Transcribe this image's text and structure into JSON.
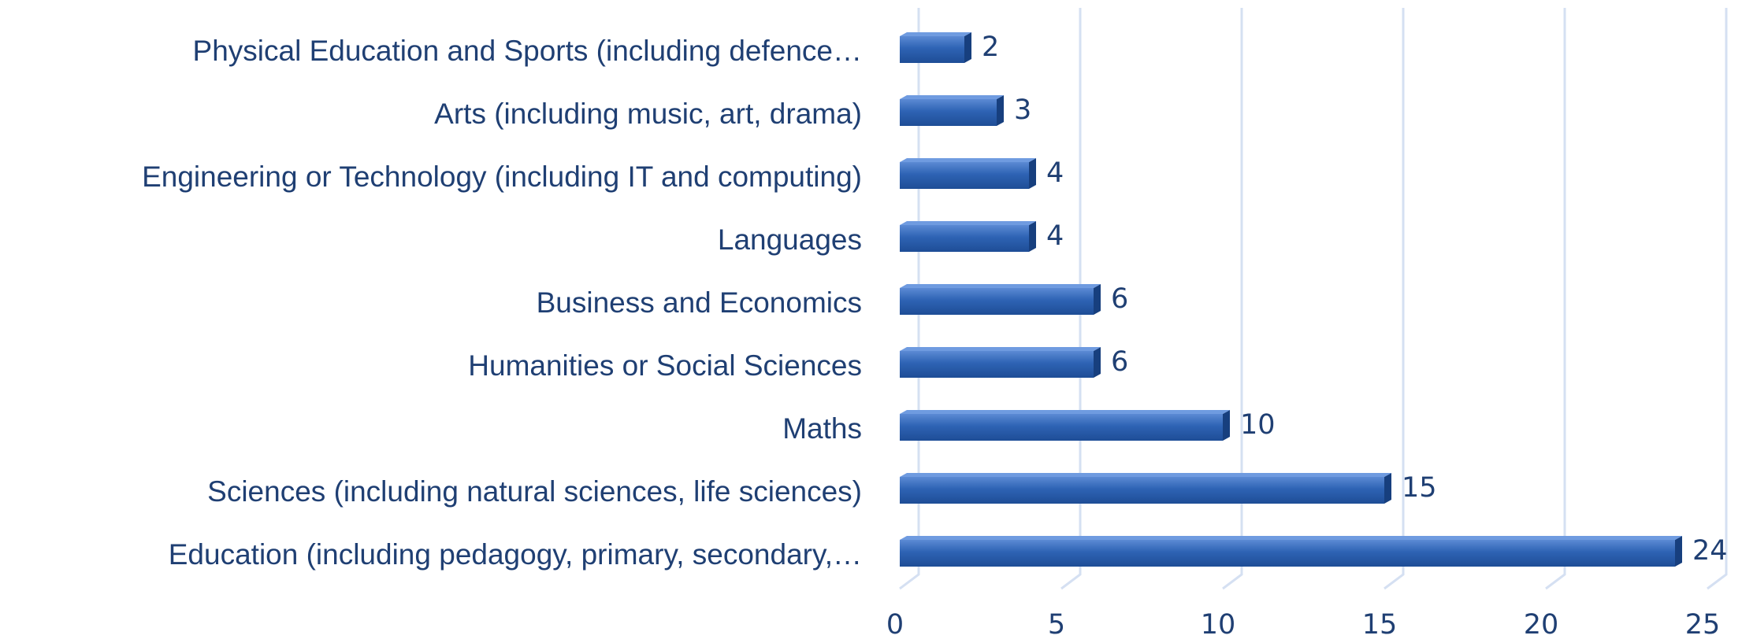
{
  "chart_data": {
    "type": "bar",
    "orientation": "horizontal",
    "categories": [
      "Physical Education and Sports (including defence…",
      "Arts (including music, art, drama)",
      "Engineering or Technology (including IT and computing)",
      "Languages",
      "Business and Economics",
      "Humanities or Social Sciences",
      "Maths",
      "Sciences (including natural sciences, life sciences)",
      "Education (including pedagogy, primary, secondary,…"
    ],
    "values": [
      2,
      3,
      4,
      4,
      6,
      6,
      10,
      15,
      24
    ],
    "color": "#2e63b4",
    "xlim": [
      0,
      25
    ],
    "xticks": [
      0,
      5,
      10,
      15,
      20,
      25
    ],
    "grid": true
  }
}
